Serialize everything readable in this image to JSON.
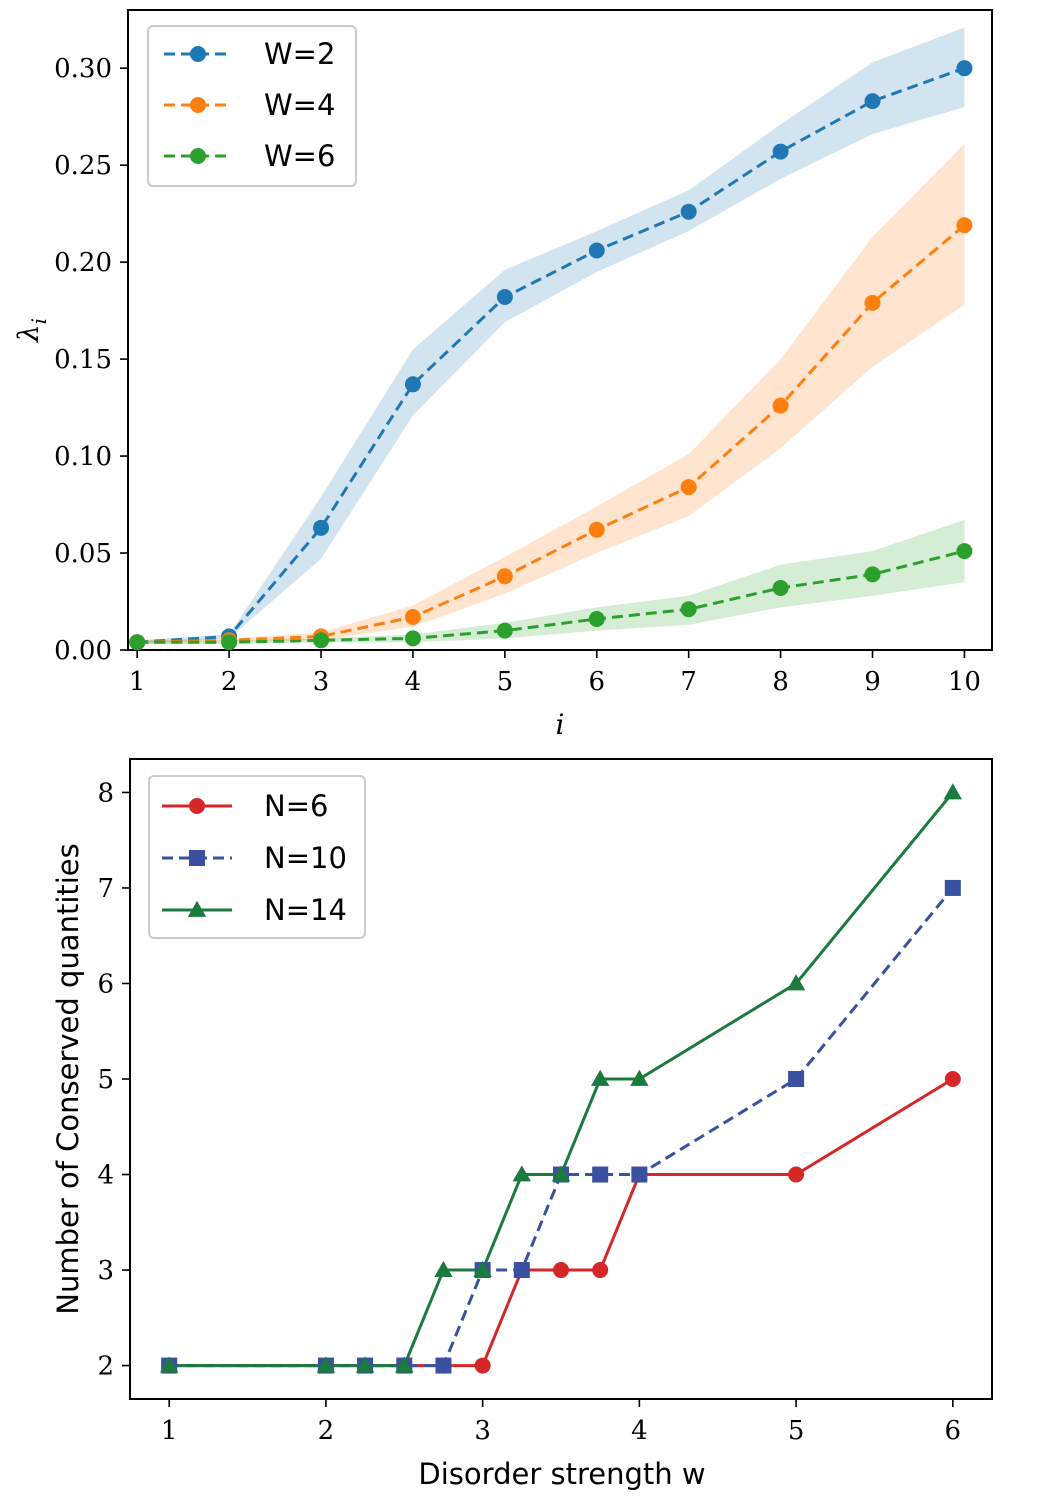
{
  "chart_data": [
    {
      "type": "line",
      "title": "",
      "xlabel": "i",
      "ylabel": "λ_i",
      "xlim": [
        0.9,
        10.3
      ],
      "ylim": [
        0.0,
        0.33
      ],
      "xticks": [
        1,
        2,
        3,
        4,
        5,
        6,
        7,
        8,
        9,
        10
      ],
      "xtick_labels": [
        "1",
        "2",
        "3",
        "4",
        "5",
        "6",
        "7",
        "8",
        "9",
        "10"
      ],
      "yticks": [
        0.0,
        0.05,
        0.1,
        0.15,
        0.2,
        0.25,
        0.3
      ],
      "ytick_labels": [
        "0.00",
        "0.05",
        "0.10",
        "0.15",
        "0.20",
        "0.25",
        "0.30"
      ],
      "legend_position": "top-left",
      "x": [
        1,
        2,
        3,
        4,
        5,
        6,
        7,
        8,
        9,
        10
      ],
      "series": [
        {
          "name": "W=2",
          "color": "#1f77b4",
          "band_color": "#1f77b4",
          "linestyle": "dashed",
          "marker": "circle",
          "values": [
            0.004,
            0.007,
            0.063,
            0.137,
            0.182,
            0.206,
            0.226,
            0.257,
            0.283,
            0.3
          ],
          "lower": [
            0.003,
            0.006,
            0.047,
            0.121,
            0.169,
            0.195,
            0.216,
            0.243,
            0.266,
            0.28
          ],
          "upper": [
            0.005,
            0.008,
            0.079,
            0.155,
            0.196,
            0.216,
            0.237,
            0.271,
            0.303,
            0.321
          ]
        },
        {
          "name": "W=4",
          "color": "#ff7f0e",
          "band_color": "#ff7f0e",
          "linestyle": "dashed",
          "marker": "circle",
          "values": [
            0.004,
            0.005,
            0.007,
            0.017,
            0.038,
            0.062,
            0.084,
            0.126,
            0.179,
            0.219
          ],
          "lower": [
            0.003,
            0.004,
            0.005,
            0.012,
            0.029,
            0.05,
            0.069,
            0.104,
            0.146,
            0.178
          ],
          "upper": [
            0.005,
            0.006,
            0.009,
            0.023,
            0.048,
            0.074,
            0.101,
            0.15,
            0.213,
            0.261
          ]
        },
        {
          "name": "W=6",
          "color": "#2ca02c",
          "band_color": "#2ca02c",
          "linestyle": "dashed",
          "marker": "circle",
          "values": [
            0.004,
            0.004,
            0.005,
            0.006,
            0.01,
            0.016,
            0.021,
            0.032,
            0.039,
            0.051
          ],
          "lower": [
            0.003,
            0.003,
            0.004,
            0.004,
            0.006,
            0.01,
            0.013,
            0.022,
            0.028,
            0.035
          ],
          "upper": [
            0.005,
            0.005,
            0.006,
            0.008,
            0.014,
            0.022,
            0.028,
            0.044,
            0.051,
            0.067
          ]
        }
      ]
    },
    {
      "type": "line",
      "title": "",
      "xlabel": "Disorder strength w",
      "ylabel": "Number of Conserved quantities",
      "xlim": [
        0.75,
        6.25
      ],
      "ylim": [
        1.65,
        8.35
      ],
      "xticks": [
        1,
        2,
        3,
        4,
        5,
        6
      ],
      "xtick_labels": [
        "1",
        "2",
        "3",
        "4",
        "5",
        "6"
      ],
      "yticks": [
        2,
        3,
        4,
        5,
        6,
        7,
        8
      ],
      "ytick_labels": [
        "2",
        "3",
        "4",
        "5",
        "6",
        "7",
        "8"
      ],
      "legend_position": "top-left",
      "series": [
        {
          "name": "N=6",
          "color": "#d62728",
          "linestyle": "solid",
          "marker": "circle",
          "x": [
            1,
            2,
            2.25,
            2.5,
            2.75,
            3,
            3.25,
            3.5,
            3.75,
            4,
            5,
            6
          ],
          "values": [
            2,
            2,
            2,
            2,
            2,
            2,
            3,
            3,
            3,
            4,
            4,
            5
          ]
        },
        {
          "name": "N=10",
          "color": "#3a50a0",
          "linestyle": "dashed",
          "marker": "square",
          "x": [
            1,
            2,
            2.25,
            2.5,
            2.75,
            3,
            3.25,
            3.5,
            3.75,
            4,
            5,
            6
          ],
          "values": [
            2,
            2,
            2,
            2,
            2,
            3,
            3,
            4,
            4,
            4,
            5,
            7
          ]
        },
        {
          "name": "N=14",
          "color": "#1b7a3e",
          "linestyle": "solid",
          "marker": "triangle",
          "x": [
            1,
            2,
            2.25,
            2.5,
            2.75,
            3,
            3.25,
            3.5,
            3.75,
            4,
            5,
            6
          ],
          "values": [
            2,
            2,
            2,
            2,
            3,
            3,
            4,
            4,
            5,
            5,
            6,
            8
          ]
        }
      ]
    }
  ]
}
